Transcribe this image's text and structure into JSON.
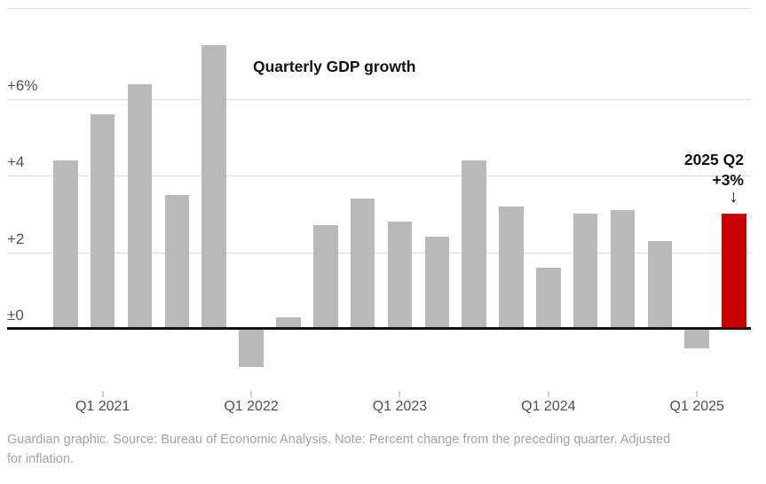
{
  "chart_data": {
    "type": "bar",
    "title": "Quarterly GDP growth",
    "categories": [
      "2020 Q4",
      "2021 Q1",
      "2021 Q2",
      "2021 Q3",
      "2021 Q4",
      "2022 Q1",
      "2022 Q2",
      "2022 Q3",
      "2022 Q4",
      "2023 Q1",
      "2023 Q2",
      "2023 Q3",
      "2023 Q4",
      "2024 Q1",
      "2024 Q2",
      "2024 Q3",
      "2024 Q4",
      "2025 Q1",
      "2025 Q2"
    ],
    "values": [
      4.4,
      5.6,
      6.4,
      3.5,
      7.4,
      -1.0,
      0.3,
      2.7,
      3.4,
      2.8,
      2.4,
      4.4,
      3.2,
      1.6,
      3.0,
      3.1,
      2.3,
      -0.5,
      3.0
    ],
    "unit": "%",
    "highlight_index": 18,
    "y_ticks": [
      {
        "label": "+6%",
        "value": 6
      },
      {
        "label": "+4",
        "value": 4
      },
      {
        "label": "+2",
        "value": 2
      },
      {
        "label": "±0",
        "value": 0
      }
    ],
    "x_ticks": [
      {
        "label": "Q1 2021",
        "category_index": 1
      },
      {
        "label": "Q1 2022",
        "category_index": 5
      },
      {
        "label": "Q1 2023",
        "category_index": 9
      },
      {
        "label": "Q1 2024",
        "category_index": 13
      },
      {
        "label": "Q1 2025",
        "category_index": 17
      }
    ],
    "ylim": [
      -1.3,
      8.3
    ],
    "xlabel": "",
    "ylabel": "",
    "grid": "horizontal",
    "legend": "none",
    "bar_color": "#b9b9b9",
    "highlight_color": "#c70000"
  },
  "annotation": {
    "line1": "2025 Q2",
    "line2": "+3%",
    "arrow": "↓"
  },
  "footnote": {
    "line1": "Guardian graphic. Source: Bureau of Economic Analysis. Note: Percent change from the preceding quarter. Adjusted",
    "line2": "for inflation.",
    "full_text": "Guardian graphic. Source: Bureau of Economic Analysis. Note: Percent change from the preceding quarter. Adjusted for inflation."
  },
  "colors": {
    "bar": "#b9b9b9",
    "highlight": "#c70000",
    "gridline": "#dcdcdc",
    "axis_line": "#121212",
    "axis_label": "#4f4f4f",
    "footnote": "#a3a3a3",
    "title": "#121212"
  }
}
